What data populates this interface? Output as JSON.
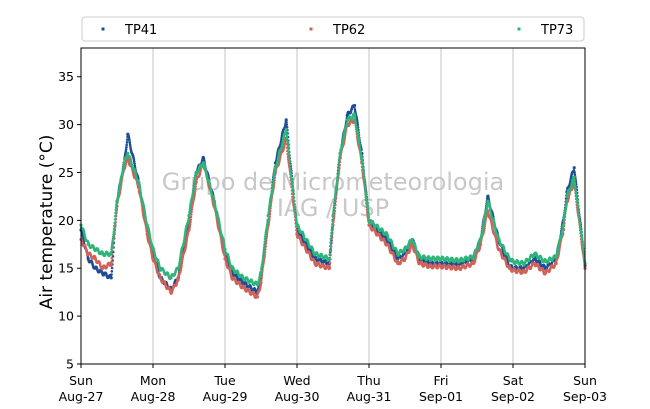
{
  "chart_data": {
    "type": "scatter",
    "ylabel": "Air temperature (°C)",
    "ylim": [
      5,
      38
    ],
    "y_ticks": [
      "5",
      "10",
      "15",
      "20",
      "25",
      "30",
      "35"
    ],
    "x_ticks": [
      {
        "day": "Sun",
        "date": "Aug-27"
      },
      {
        "day": "Mon",
        "date": "Aug-28"
      },
      {
        "day": "Tue",
        "date": "Aug-29"
      },
      {
        "day": "Wed",
        "date": "Aug-30"
      },
      {
        "day": "Thu",
        "date": "Aug-31"
      },
      {
        "day": "Fri",
        "date": "Sep-01"
      },
      {
        "day": "Sat",
        "date": "Sep-02"
      },
      {
        "day": "Sun",
        "date": "Sep-03"
      }
    ],
    "grid": "vertical",
    "legend_position": "top",
    "watermark": [
      "Grupo de Micrometeorologia",
      "IAG / USP"
    ],
    "series": [
      {
        "name": "TP41",
        "color": "#1f4e96",
        "x_day": [
          0.0,
          0.1,
          0.2,
          0.3,
          0.42,
          0.5,
          0.6,
          0.65,
          0.8,
          0.92,
          1.0,
          1.1,
          1.25,
          1.35,
          1.5,
          1.6,
          1.7,
          1.85,
          2.0,
          2.1,
          2.25,
          2.45,
          2.5,
          2.6,
          2.7,
          2.85,
          3.0,
          3.25,
          3.45,
          3.5,
          3.6,
          3.7,
          3.8,
          3.9,
          4.0,
          4.25,
          4.4,
          4.5,
          4.6,
          4.7,
          4.85,
          5.0,
          5.25,
          5.45,
          5.55,
          5.65,
          5.8,
          5.95,
          6.0,
          6.15,
          6.3,
          6.45,
          6.6,
          6.7,
          6.75,
          6.85,
          7.0
        ],
        "y": [
          19.0,
          16.0,
          15.0,
          14.5,
          14.0,
          22.0,
          26.0,
          29.0,
          24.0,
          19.0,
          16.5,
          14.0,
          12.8,
          14.0,
          20.0,
          25.0,
          26.5,
          22.0,
          16.5,
          14.5,
          13.5,
          12.5,
          14.0,
          20.0,
          26.0,
          30.5,
          19.0,
          16.0,
          15.5,
          20.0,
          27.0,
          31.0,
          32.0,
          27.0,
          20.0,
          18.0,
          16.0,
          16.5,
          18.0,
          16.0,
          15.5,
          15.5,
          15.4,
          16.0,
          18.0,
          22.5,
          18.0,
          15.2,
          15.0,
          15.0,
          16.0,
          15.0,
          16.0,
          20.0,
          23.0,
          25.5,
          15.3
        ]
      },
      {
        "name": "TP62",
        "color": "#d1625a",
        "x_day": [
          0.0,
          0.1,
          0.2,
          0.3,
          0.42,
          0.5,
          0.6,
          0.65,
          0.8,
          0.92,
          1.0,
          1.1,
          1.25,
          1.35,
          1.5,
          1.6,
          1.7,
          1.85,
          2.0,
          2.1,
          2.25,
          2.45,
          2.5,
          2.6,
          2.7,
          2.85,
          3.0,
          3.25,
          3.45,
          3.5,
          3.6,
          3.7,
          3.8,
          3.9,
          4.0,
          4.25,
          4.4,
          4.5,
          4.6,
          4.7,
          4.85,
          5.0,
          5.25,
          5.45,
          5.55,
          5.65,
          5.8,
          5.95,
          6.0,
          6.15,
          6.3,
          6.45,
          6.6,
          6.7,
          6.75,
          6.85,
          7.0
        ],
        "y": [
          18.0,
          16.5,
          16.0,
          15.0,
          15.5,
          21.5,
          25.5,
          26.5,
          23.5,
          18.5,
          16.0,
          14.0,
          12.5,
          13.8,
          19.0,
          24.0,
          26.0,
          21.5,
          16.0,
          14.0,
          13.0,
          12.0,
          13.5,
          19.5,
          25.0,
          28.5,
          18.5,
          15.5,
          15.0,
          19.5,
          26.5,
          30.0,
          30.5,
          26.0,
          19.5,
          17.5,
          15.5,
          16.0,
          17.5,
          15.5,
          15.2,
          15.2,
          15.0,
          15.5,
          17.5,
          21.0,
          17.0,
          15.0,
          14.8,
          14.6,
          15.5,
          14.5,
          15.5,
          19.0,
          22.0,
          24.0,
          15.0
        ]
      },
      {
        "name": "TP73",
        "color": "#2eb57a",
        "x_day": [
          0.0,
          0.1,
          0.2,
          0.3,
          0.42,
          0.5,
          0.6,
          0.65,
          0.8,
          0.92,
          1.0,
          1.1,
          1.25,
          1.35,
          1.5,
          1.6,
          1.7,
          1.85,
          2.0,
          2.1,
          2.25,
          2.45,
          2.5,
          2.6,
          2.7,
          2.85,
          3.0,
          3.25,
          3.45,
          3.5,
          3.6,
          3.7,
          3.8,
          3.9,
          4.0,
          4.25,
          4.4,
          4.5,
          4.6,
          4.7,
          4.85,
          5.0,
          5.25,
          5.45,
          5.55,
          5.65,
          5.8,
          5.95,
          6.0,
          6.15,
          6.3,
          6.45,
          6.6,
          6.7,
          6.75,
          6.85,
          7.0
        ],
        "y": [
          19.5,
          17.5,
          17.0,
          16.5,
          16.5,
          22.0,
          26.0,
          27.0,
          24.0,
          19.5,
          17.0,
          15.0,
          14.0,
          15.0,
          20.5,
          25.0,
          26.0,
          22.0,
          17.0,
          15.0,
          14.0,
          13.3,
          14.5,
          20.5,
          25.5,
          29.5,
          19.5,
          16.5,
          16.0,
          20.5,
          27.0,
          30.5,
          31.0,
          26.5,
          20.0,
          18.5,
          16.5,
          17.0,
          18.0,
          16.2,
          16.0,
          16.0,
          15.8,
          16.2,
          18.0,
          22.0,
          18.0,
          16.0,
          15.7,
          15.5,
          16.5,
          15.7,
          16.2,
          19.5,
          22.5,
          24.5,
          15.5
        ]
      }
    ]
  }
}
